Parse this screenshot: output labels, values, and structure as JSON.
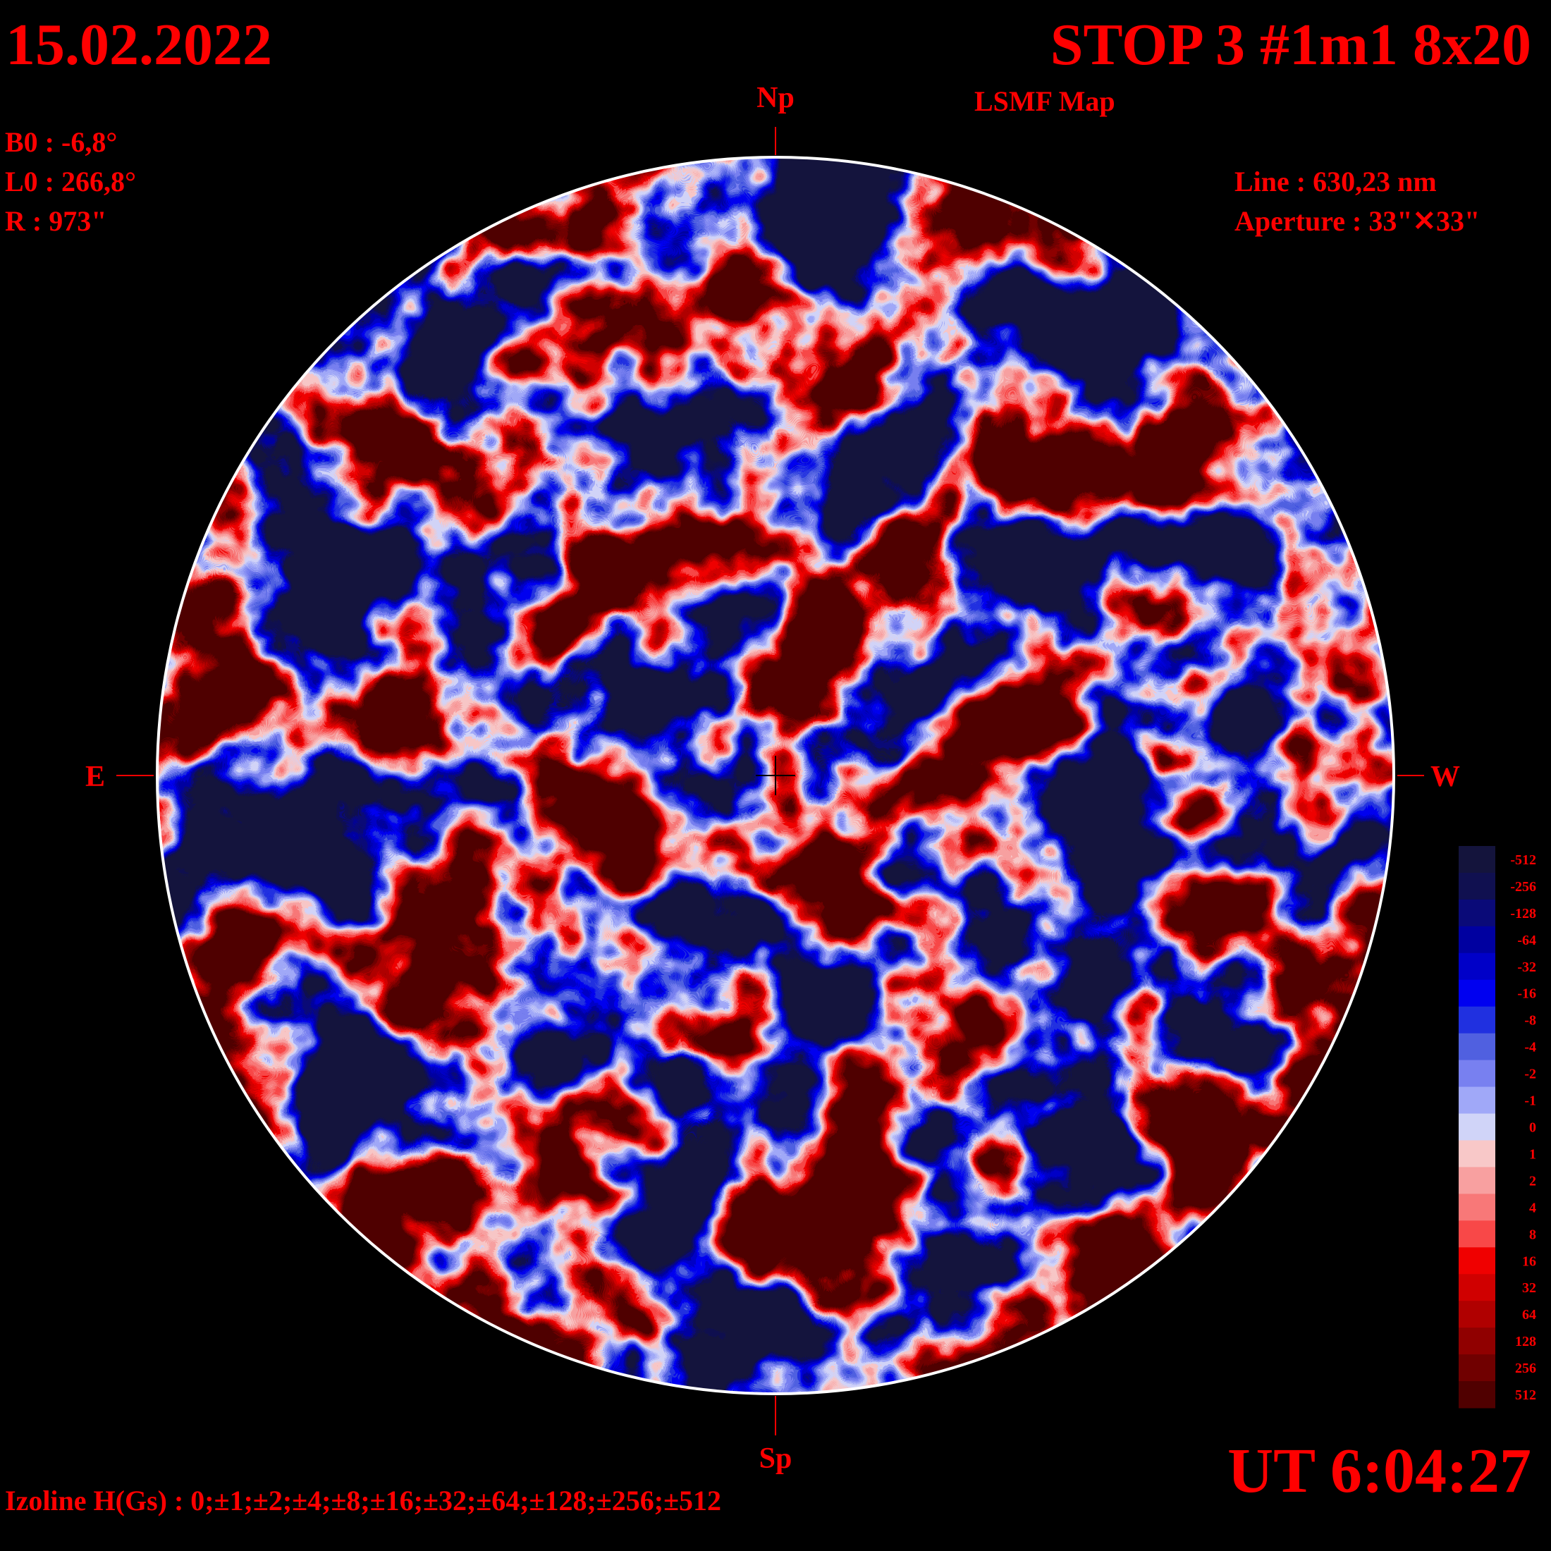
{
  "header": {
    "date": "15.02.2022",
    "title": "STOP 3 #1m1 8x20",
    "subtitle": "LSMF  Map",
    "b0": "B0 : -6,8°",
    "l0": "L0 : 266,8°",
    "radius": "R  : 973\"",
    "line": "Line :  630,23 nm",
    "aperture": "Aperture : 33\"✕33\""
  },
  "directions": {
    "north": "Np",
    "south": "Sp",
    "east": "E",
    "west": "W"
  },
  "footer": {
    "time": "UT 6:04:27",
    "izoline": "Izoline H(Gs) : 0;±1;±2;±4;±8;±16;±32;±64;±128;±256;±512"
  },
  "colorbar": [
    {
      "label": "-512",
      "color": "#14143c"
    },
    {
      "label": "-256",
      "color": "#101050"
    },
    {
      "label": "-128",
      "color": "#0a0a78"
    },
    {
      "label": "-64",
      "color": "#0000a0"
    },
    {
      "label": "-32",
      "color": "#0000c8"
    },
    {
      "label": "-16",
      "color": "#0000f0"
    },
    {
      "label": "-8",
      "color": "#2030e0"
    },
    {
      "label": "-4",
      "color": "#5060e0"
    },
    {
      "label": "-2",
      "color": "#7880f0"
    },
    {
      "label": "-1",
      "color": "#a0a8f8"
    },
    {
      "label": "0",
      "color": "#d0d4f8"
    },
    {
      "label": "1",
      "color": "#f8c8c8"
    },
    {
      "label": "2",
      "color": "#f8a0a0"
    },
    {
      "label": "4",
      "color": "#f87878"
    },
    {
      "label": "8",
      "color": "#f84848"
    },
    {
      "label": "16",
      "color": "#f00000"
    },
    {
      "label": "32",
      "color": "#d00000"
    },
    {
      "label": "64",
      "color": "#b00000"
    },
    {
      "label": "128",
      "color": "#900000"
    },
    {
      "label": "256",
      "color": "#700000"
    },
    {
      "label": "512",
      "color": "#500000"
    }
  ]
}
